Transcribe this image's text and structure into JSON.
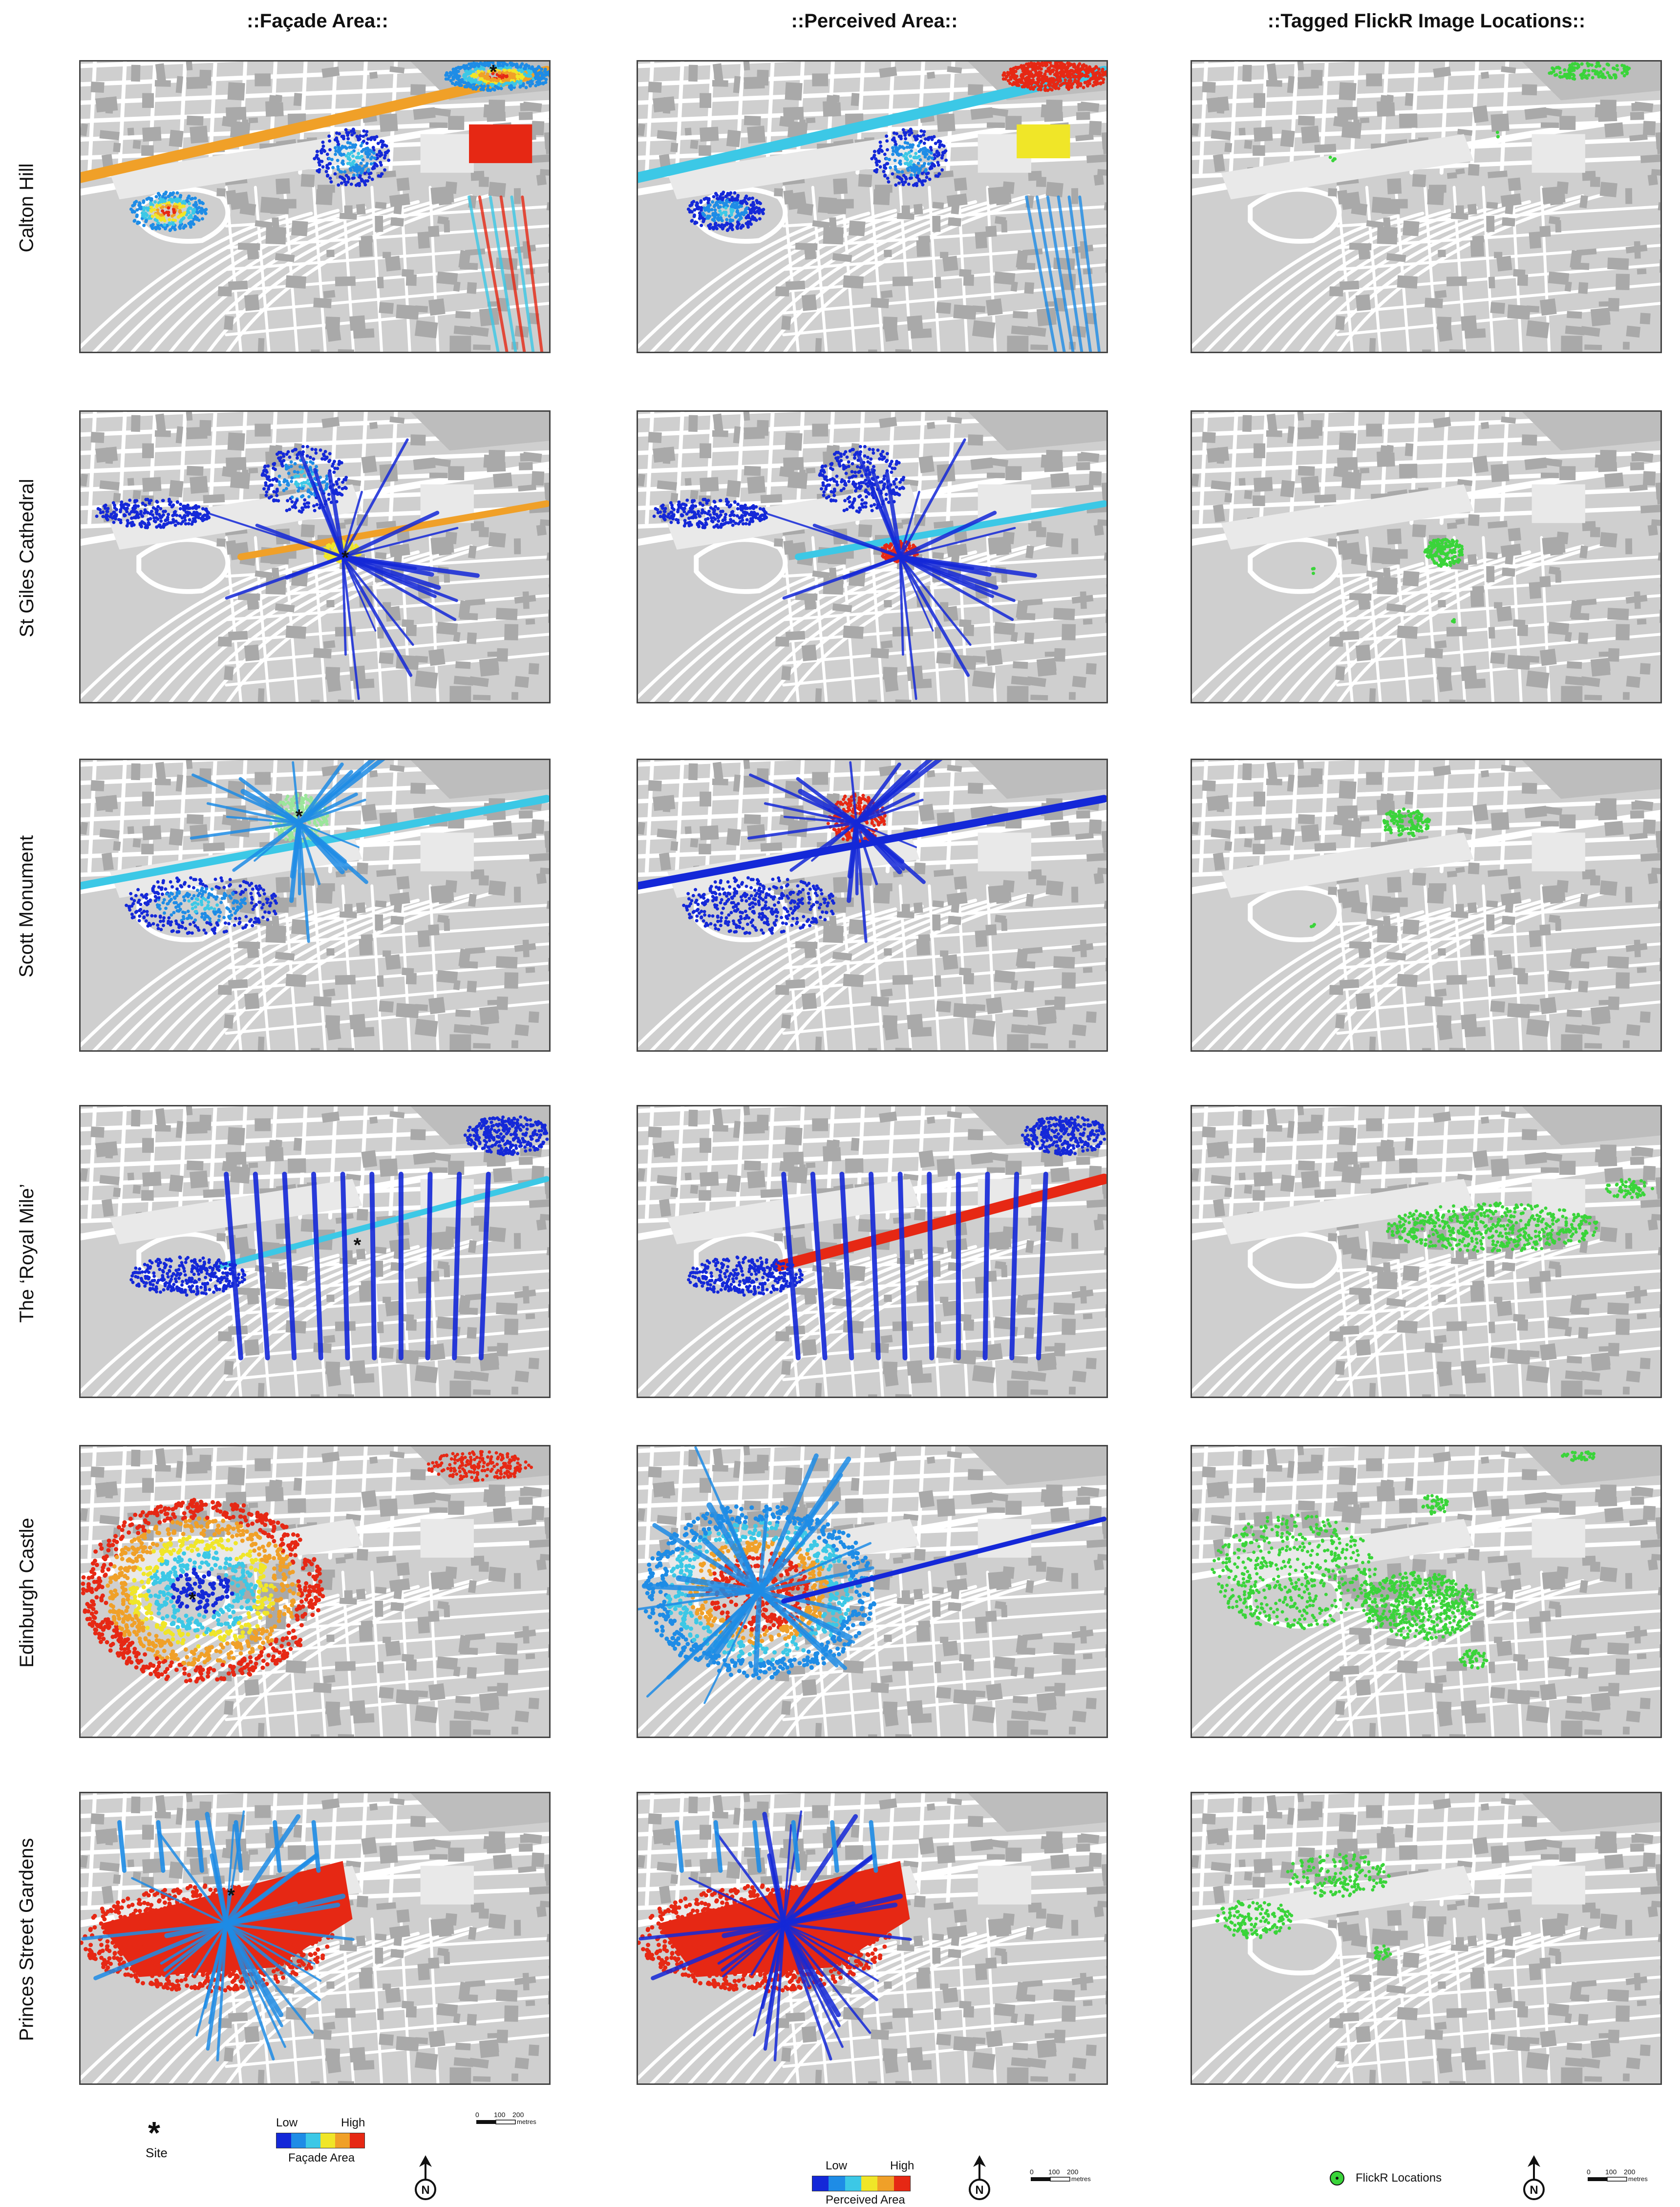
{
  "columns": [
    {
      "id": "facade",
      "title": "::Façade Area::"
    },
    {
      "id": "perceived",
      "title": "::Perceived Area::"
    },
    {
      "id": "flickr",
      "title": "::Tagged FlickR Image Locations::"
    }
  ],
  "rows": [
    {
      "id": "calton-hill",
      "label": "Calton Hill"
    },
    {
      "id": "st-giles",
      "label": "St Giles Cathedral"
    },
    {
      "id": "scott-monument",
      "label": "Scott Monument"
    },
    {
      "id": "royal-mile",
      "label": "The ‘Royal Mile’"
    },
    {
      "id": "edinburgh-castle",
      "label": "Edinburgh Castle"
    },
    {
      "id": "princes-street",
      "label": "Princes Street Gardens"
    }
  ],
  "legend": {
    "site_symbol": "*",
    "site_label": "Site",
    "facade": {
      "low": "Low",
      "high": "High",
      "caption": "Façade Area"
    },
    "perceived": {
      "low": "Low",
      "high": "High",
      "caption": "Perceived Area"
    },
    "flickr": {
      "caption": "FlickR Locations"
    },
    "north_symbol": "N",
    "scale": {
      "ticks": [
        "0",
        "100",
        "200"
      ],
      "unit": "metres"
    },
    "ramp_colors": [
      "#1428d8",
      "#1e8ce6",
      "#3cc8e6",
      "#9be69b",
      "#f0e628",
      "#f0a028",
      "#e62814"
    ],
    "flickr_color": "#3ad43a"
  }
}
